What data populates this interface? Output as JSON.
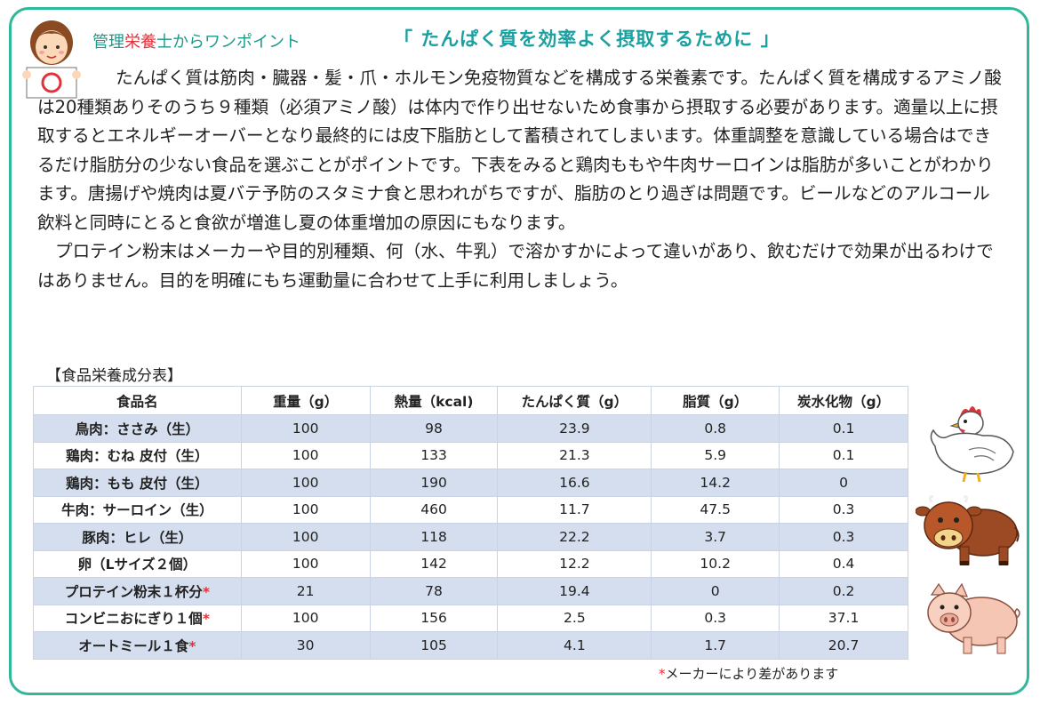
{
  "header": {
    "label_pre": "管理",
    "label_accent": "栄養",
    "label_post": "士からワンポイント",
    "title": "「 たんぱく質を効率よく摂取するために 」"
  },
  "body": {
    "paragraph1": "たんぱく質は筋肉・臓器・髪・爪・ホルモン免疫物質などを構成する栄養素です。たんぱく質を構成するアミノ酸は20種類ありそのうち９種類（必須アミノ酸）は体内で作り出せないため食事から摂取する必要があります。適量以上に摂取するとエネルギーオーバーとなり最終的には皮下脂肪として蓄積されてしまいます。体重調整を意識している場合はできるだけ脂肪分の少ない食品を選ぶことがポイントです。下表をみると鶏肉ももや牛肉サーロインは脂肪が多いことがわかります。唐揚げや焼肉は夏バテ予防のスタミナ食と思われがちですが、脂肪のとり過ぎは問題です。ビールなどのアルコール飲料と同時にとると食欲が増進し夏の体重増加の原因にもなります。",
    "paragraph2": "プロテイン粉末はメーカーや目的別種類、何（水、牛乳）で溶かすかによって違いがあり、飲むだけで効果が出るわけではありません。目的を明確にもち運動量に合わせて上手に利用しましょう。"
  },
  "table": {
    "caption": "【食品栄養成分表】",
    "headers": [
      "食品名",
      "重量（g）",
      "熱量（kcal)",
      "たんぱく質（g）",
      "脂質（g）",
      "炭水化物（g）"
    ],
    "rows": [
      {
        "food": "鳥肉：ささみ（生）",
        "mark": "",
        "weight": "100",
        "kcal": "98",
        "protein": "23.9",
        "fat": "0.8",
        "carb": "0.1"
      },
      {
        "food": "鶏肉：むね 皮付（生）",
        "mark": "",
        "weight": "100",
        "kcal": "133",
        "protein": "21.3",
        "fat": "5.9",
        "carb": "0.1"
      },
      {
        "food": "鶏肉：もも 皮付（生）",
        "mark": "",
        "weight": "100",
        "kcal": "190",
        "protein": "16.6",
        "fat": "14.2",
        "carb": "0"
      },
      {
        "food": "牛肉：サーロイン（生）",
        "mark": "",
        "weight": "100",
        "kcal": "460",
        "protein": "11.7",
        "fat": "47.5",
        "carb": "0.3"
      },
      {
        "food": "豚肉：ヒレ（生）",
        "mark": "",
        "weight": "100",
        "kcal": "118",
        "protein": "22.2",
        "fat": "3.7",
        "carb": "0.3"
      },
      {
        "food": "卵（Lサイズ２個）",
        "mark": "",
        "weight": "100",
        "kcal": "142",
        "protein": "12.2",
        "fat": "10.2",
        "carb": "0.4"
      },
      {
        "food": "プロテイン粉末１杯分",
        "mark": "*",
        "weight": "21",
        "kcal": "78",
        "protein": "19.4",
        "fat": "0",
        "carb": "0.2"
      },
      {
        "food": "コンビニおにぎり１個",
        "mark": "*",
        "weight": "100",
        "kcal": "156",
        "protein": "2.5",
        "fat": "0.3",
        "carb": "37.1"
      },
      {
        "food": "オートミール１食",
        "mark": "*",
        "weight": "30",
        "kcal": "105",
        "protein": "4.1",
        "fat": "1.7",
        "carb": "20.7"
      }
    ]
  },
  "note": {
    "star": "*",
    "text": "メーカーにより差があります"
  },
  "colors": {
    "frame": "#2fb99a",
    "accent_red": "#e0323a",
    "title_teal": "#1aa0a0",
    "row_stripe": "#d5deef"
  },
  "icons": [
    "nutritionist-avatar-icon",
    "chicken-icon",
    "cow-icon",
    "pig-icon"
  ]
}
